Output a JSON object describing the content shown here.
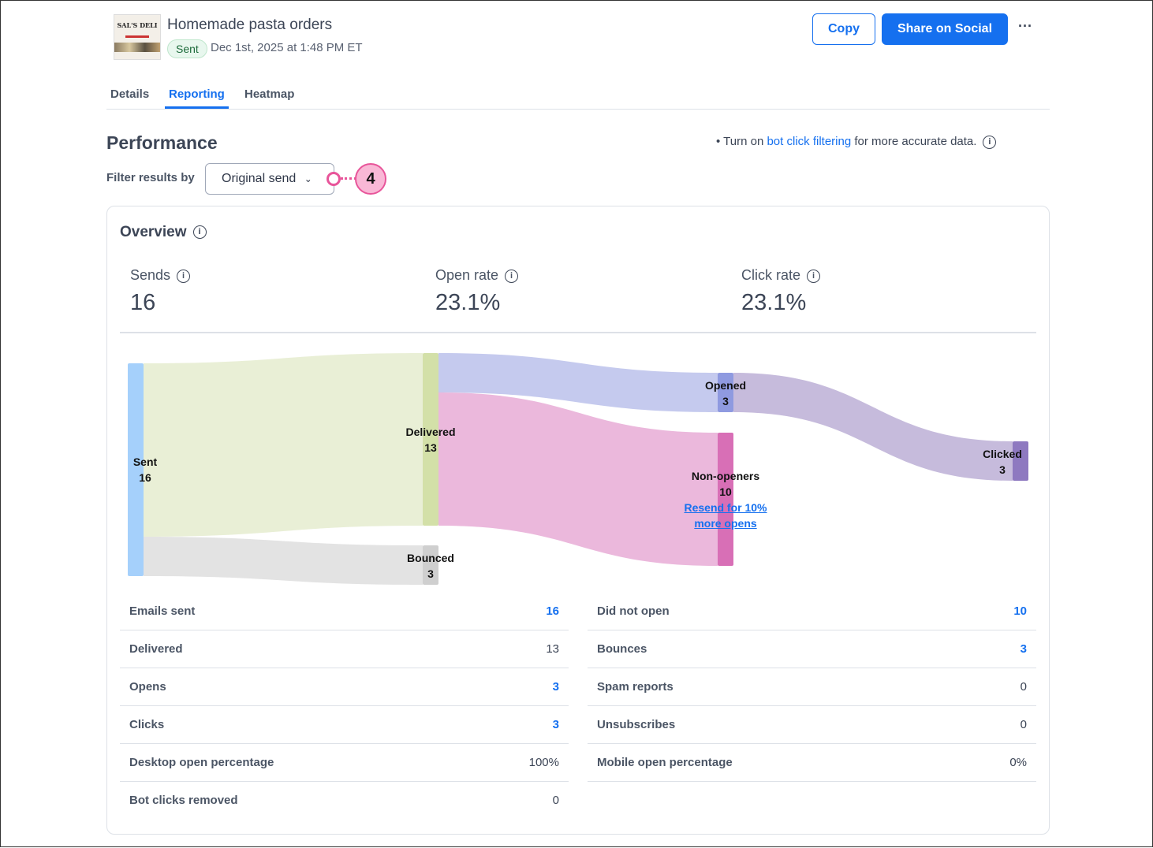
{
  "header": {
    "thumbnail_logo": "SAL'S DELI",
    "title": "Homemade pasta orders",
    "status": "Sent",
    "date": "Dec 1st, 2025 at 1:48 PM ET",
    "copy_label": "Copy",
    "share_label": "Share on Social",
    "more_label": "···"
  },
  "tabs": [
    {
      "label": "Details"
    },
    {
      "label": "Reporting",
      "active": true
    },
    {
      "label": "Heatmap"
    }
  ],
  "performance": {
    "title": "Performance",
    "note_pre": "Turn on",
    "note_link": "bot click filtering",
    "note_post": "for more accurate data.",
    "filter_label": "Filter results by",
    "filter_value": "Original send",
    "marker": "4"
  },
  "overview": {
    "title": "Overview",
    "kpis": [
      {
        "label": "Sends",
        "value": "16"
      },
      {
        "label": "Open rate",
        "value": "23.1%"
      },
      {
        "label": "Click rate",
        "value": "23.1%"
      }
    ]
  },
  "sankey": {
    "nodes": [
      {
        "label": "Sent",
        "value": "16"
      },
      {
        "label": "Delivered",
        "value": "13"
      },
      {
        "label": "Bounced",
        "value": "3"
      },
      {
        "label": "Opened",
        "value": "3"
      },
      {
        "label": "Non-openers",
        "value": "10"
      },
      {
        "label": "Clicked",
        "value": "3"
      }
    ],
    "resend_link": "Resend for 10% more opens",
    "colors": {
      "sent": "#a5d0fb",
      "delivered": "#d3e0a8",
      "bounced": "#cfcfcf",
      "opened": "#8f9ae0",
      "non_openers": "#d86fb6",
      "clicked": "#8e79c0"
    }
  },
  "stats": {
    "left": [
      {
        "label": "Emails sent",
        "value": "16",
        "link": true
      },
      {
        "label": "Delivered",
        "value": "13"
      },
      {
        "label": "Opens",
        "value": "3",
        "link": true
      },
      {
        "label": "Clicks",
        "value": "3",
        "link": true
      },
      {
        "label": "Desktop open percentage",
        "value": "100%"
      },
      {
        "label": "Bot clicks removed",
        "value": "0"
      }
    ],
    "right": [
      {
        "label": "Did not open",
        "value": "10",
        "link": true
      },
      {
        "label": "Bounces",
        "value": "3",
        "link": true
      },
      {
        "label": "Spam reports",
        "value": "0"
      },
      {
        "label": "Unsubscribes",
        "value": "0"
      },
      {
        "label": "Mobile open percentage",
        "value": "0%"
      }
    ]
  }
}
